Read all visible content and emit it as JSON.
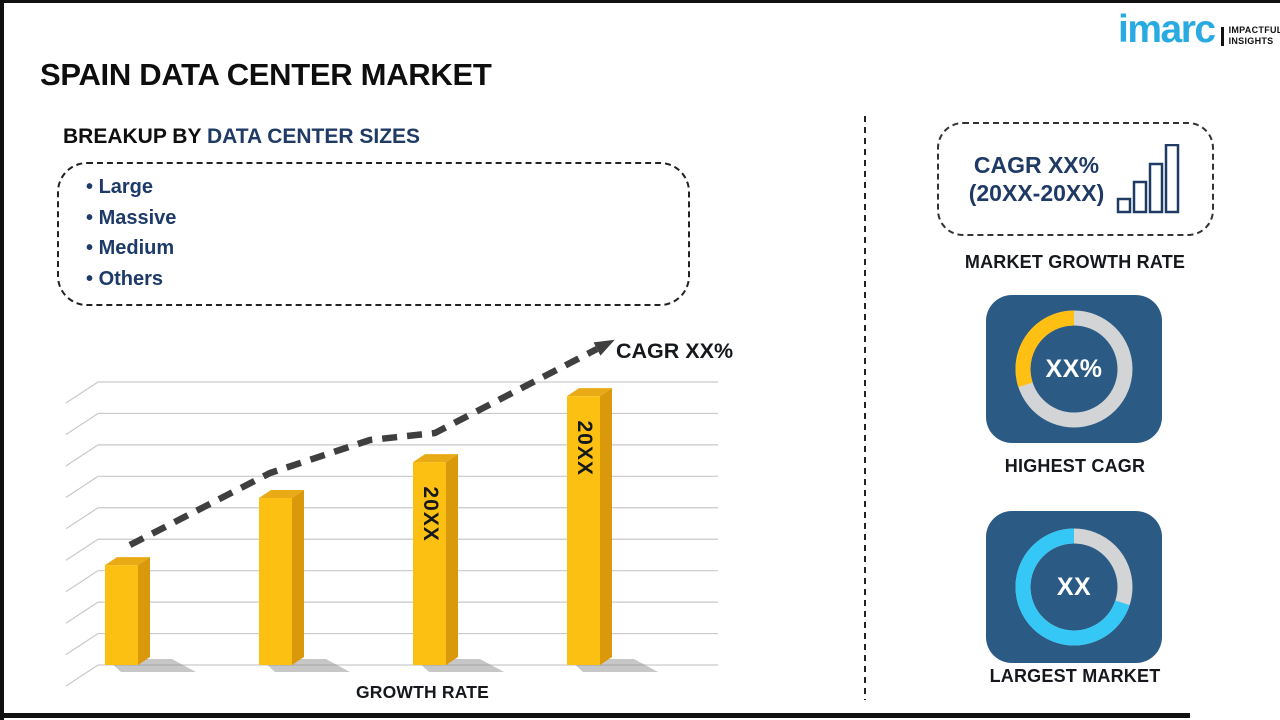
{
  "page": {
    "title": "SPAIN DATA CENTER MARKET",
    "subtitle_prefix": "BREAKUP BY",
    "subtitle_highlight": "DATA CENTER SIZES",
    "breakup_items": [
      "Large",
      "Massive",
      "Medium",
      "Others"
    ]
  },
  "chart_data": {
    "type": "bar",
    "title": "",
    "xlabel": "GROWTH RATE",
    "ylabel": "",
    "categories": [
      "",
      "",
      "20XX",
      "20XX"
    ],
    "bars": [
      {
        "label": "",
        "height_frac": 0.353
      },
      {
        "label": "",
        "height_frac": 0.59
      },
      {
        "label": "20XX",
        "height_frac": 0.717
      },
      {
        "label": "20XX",
        "height_frac": 0.95
      }
    ],
    "trend_annotation": "CAGR XX%",
    "trend_points": [
      [
        90,
        210
      ],
      [
        230,
        138
      ],
      [
        330,
        105
      ],
      [
        395,
        98
      ],
      [
        557,
        14
      ]
    ],
    "gridline_count": 10,
    "grid": "on",
    "legend": "none",
    "colors": {
      "bar_front": "#fcc013",
      "bar_side": "#d9990b",
      "bar_top": "#e9ab15",
      "grid": "#c9c9c9",
      "trend": "#3f3f3f",
      "shadow": "#8f8f8f"
    }
  },
  "right_panel": {
    "cagr_card": {
      "line1": "CAGR XX%",
      "line2": "(20XX-20XX)"
    },
    "growth_caption": "MARKET GROWTH RATE",
    "stats": [
      {
        "value": "XX%",
        "caption": "HIGHEST CAGR",
        "percent": 30,
        "ring_color": "#ffc013",
        "track_color": "#d3d4d6",
        "tile_color": "#2b5a84"
      },
      {
        "value": "XX",
        "caption": "LARGEST MARKET",
        "percent": 70,
        "ring_color": "#35c7f5",
        "track_color": "#d3d4d6",
        "tile_color": "#2b5a84"
      }
    ]
  },
  "logo": {
    "brand": "imarc",
    "tagline_line1": "IMPACTFUL",
    "tagline_line2": "INSIGHTS",
    "brand_color": "#29abe2"
  }
}
